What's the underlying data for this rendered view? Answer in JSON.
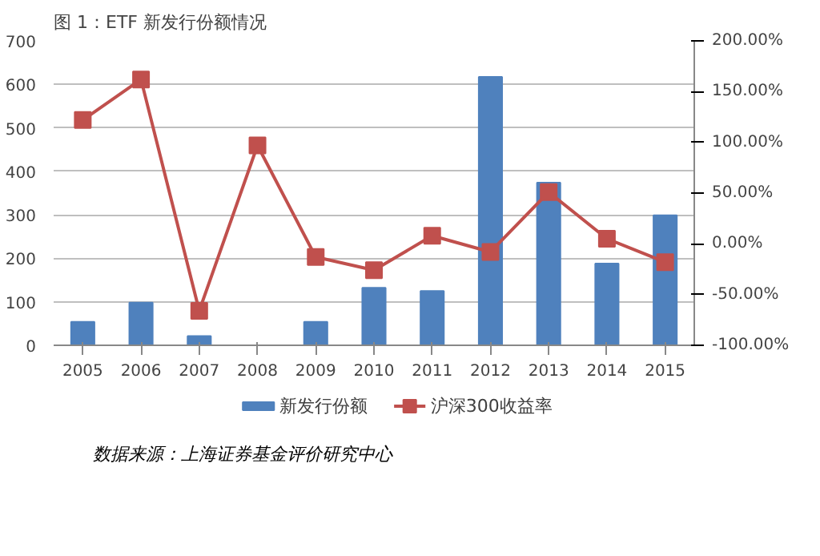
{
  "chart_data": {
    "type": "bar",
    "title": "图 1：ETF 新发行份额情况",
    "categories": [
      "2005",
      "2006",
      "2007",
      "2008",
      "2009",
      "2010",
      "2011",
      "2012",
      "2013",
      "2014",
      "2015"
    ],
    "series": [
      {
        "name": "新发行份额",
        "color": "#4f81bd",
        "values": [
          54,
          98,
          21,
          0,
          54,
          132,
          125,
          617,
          374,
          188,
          299
        ]
      },
      {
        "name": "沪深300收益率",
        "type": "line",
        "axis": "y2",
        "color": "#c0504d",
        "marker": "square",
        "values": [
          122,
          162,
          -66,
          97,
          -13,
          -26,
          8,
          -8,
          51,
          5,
          -18
        ]
      }
    ],
    "ylim": [
      0,
      700
    ],
    "yticks": [
      0,
      100,
      200,
      300,
      400,
      500,
      600,
      700
    ],
    "y2lim": [
      -100,
      200
    ],
    "y2ticks": [
      {
        "value": -100,
        "label": "-100.00%"
      },
      {
        "value": -50,
        "label": "-50.00%"
      },
      {
        "value": 0,
        "label": "0.00%"
      },
      {
        "value": 50,
        "label": "50.00%"
      },
      {
        "value": 100,
        "label": "100.00%"
      },
      {
        "value": 150,
        "label": "150.00%"
      },
      {
        "value": 200,
        "label": "200.00%"
      }
    ],
    "grid": "y",
    "legend": "bottom",
    "annotations": [
      "数据来源：上海证券基金评价研究中心"
    ]
  }
}
